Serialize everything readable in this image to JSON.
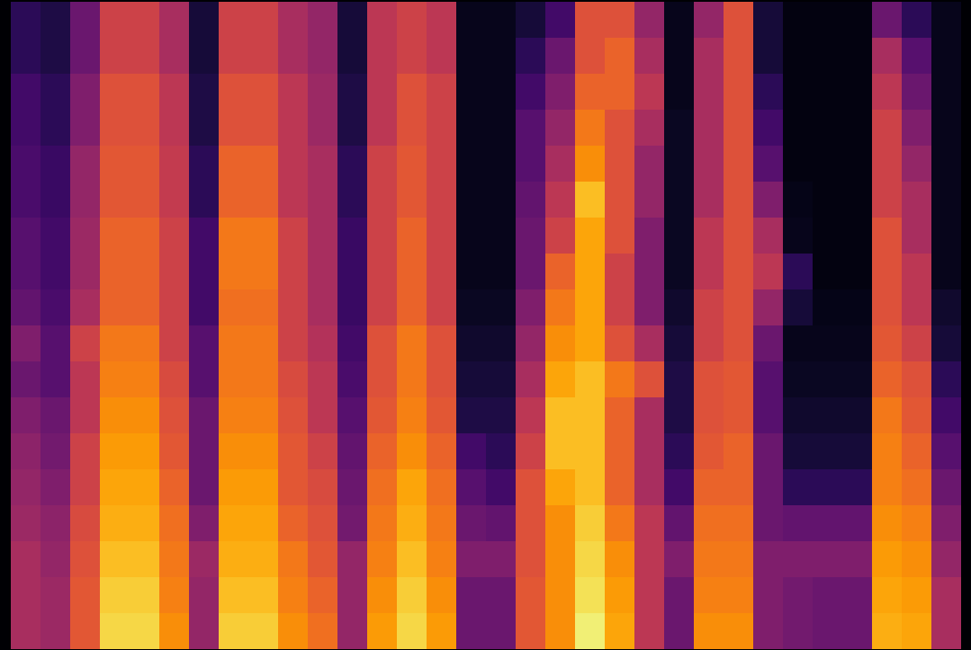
{
  "chart_data": {
    "type": "heatmap",
    "color": "inferno",
    "tick_labels": false,
    "zlim": [
      0,
      1
    ],
    "cells": [
      [
        0.15,
        0.12,
        0.3,
        0.55,
        0.55,
        0.45,
        0.1,
        0.55,
        0.55,
        0.45,
        0.4,
        0.1,
        0.5,
        0.55,
        0.5,
        0.05,
        0.05,
        0.1,
        0.2,
        0.6,
        0.6,
        0.4,
        0.05,
        0.4,
        0.6,
        0.1,
        0.03,
        0.03,
        0.03,
        0.3,
        0.15,
        0.05
      ],
      [
        0.15,
        0.12,
        0.3,
        0.55,
        0.55,
        0.45,
        0.1,
        0.55,
        0.55,
        0.45,
        0.4,
        0.1,
        0.5,
        0.55,
        0.5,
        0.05,
        0.05,
        0.15,
        0.3,
        0.6,
        0.65,
        0.45,
        0.05,
        0.45,
        0.6,
        0.1,
        0.03,
        0.03,
        0.03,
        0.45,
        0.25,
        0.05
      ],
      [
        0.2,
        0.15,
        0.35,
        0.6,
        0.6,
        0.5,
        0.12,
        0.6,
        0.6,
        0.5,
        0.42,
        0.12,
        0.5,
        0.6,
        0.55,
        0.05,
        0.05,
        0.2,
        0.35,
        0.65,
        0.65,
        0.5,
        0.05,
        0.45,
        0.6,
        0.15,
        0.03,
        0.03,
        0.03,
        0.5,
        0.3,
        0.05
      ],
      [
        0.2,
        0.15,
        0.35,
        0.6,
        0.6,
        0.5,
        0.12,
        0.6,
        0.6,
        0.5,
        0.42,
        0.12,
        0.5,
        0.6,
        0.55,
        0.05,
        0.05,
        0.25,
        0.4,
        0.7,
        0.6,
        0.45,
        0.06,
        0.45,
        0.6,
        0.2,
        0.03,
        0.03,
        0.03,
        0.55,
        0.35,
        0.05
      ],
      [
        0.22,
        0.18,
        0.4,
        0.62,
        0.62,
        0.52,
        0.15,
        0.65,
        0.65,
        0.5,
        0.45,
        0.15,
        0.55,
        0.62,
        0.55,
        0.05,
        0.05,
        0.25,
        0.45,
        0.75,
        0.6,
        0.4,
        0.06,
        0.45,
        0.6,
        0.25,
        0.03,
        0.03,
        0.03,
        0.55,
        0.4,
        0.05
      ],
      [
        0.22,
        0.18,
        0.4,
        0.62,
        0.62,
        0.52,
        0.15,
        0.65,
        0.65,
        0.5,
        0.45,
        0.15,
        0.55,
        0.62,
        0.55,
        0.05,
        0.05,
        0.28,
        0.5,
        0.85,
        0.6,
        0.4,
        0.06,
        0.45,
        0.6,
        0.35,
        0.04,
        0.03,
        0.03,
        0.55,
        0.45,
        0.05
      ],
      [
        0.25,
        0.2,
        0.42,
        0.65,
        0.65,
        0.55,
        0.2,
        0.7,
        0.7,
        0.55,
        0.45,
        0.18,
        0.55,
        0.65,
        0.55,
        0.05,
        0.05,
        0.3,
        0.55,
        0.8,
        0.6,
        0.35,
        0.06,
        0.5,
        0.6,
        0.45,
        0.05,
        0.03,
        0.03,
        0.6,
        0.45,
        0.05
      ],
      [
        0.25,
        0.2,
        0.42,
        0.65,
        0.65,
        0.55,
        0.2,
        0.7,
        0.7,
        0.55,
        0.45,
        0.18,
        0.55,
        0.65,
        0.55,
        0.05,
        0.05,
        0.3,
        0.65,
        0.8,
        0.55,
        0.35,
        0.06,
        0.5,
        0.6,
        0.5,
        0.15,
        0.03,
        0.03,
        0.6,
        0.5,
        0.05
      ],
      [
        0.28,
        0.22,
        0.45,
        0.65,
        0.65,
        0.55,
        0.2,
        0.68,
        0.68,
        0.55,
        0.45,
        0.18,
        0.55,
        0.65,
        0.55,
        0.06,
        0.06,
        0.35,
        0.7,
        0.8,
        0.55,
        0.35,
        0.08,
        0.55,
        0.6,
        0.4,
        0.1,
        0.04,
        0.04,
        0.6,
        0.5,
        0.08
      ],
      [
        0.35,
        0.25,
        0.55,
        0.7,
        0.7,
        0.55,
        0.25,
        0.7,
        0.7,
        0.55,
        0.48,
        0.2,
        0.6,
        0.7,
        0.6,
        0.08,
        0.08,
        0.4,
        0.75,
        0.8,
        0.6,
        0.45,
        0.1,
        0.55,
        0.6,
        0.3,
        0.05,
        0.05,
        0.05,
        0.62,
        0.55,
        0.1
      ],
      [
        0.3,
        0.25,
        0.5,
        0.72,
        0.72,
        0.58,
        0.25,
        0.7,
        0.7,
        0.58,
        0.5,
        0.22,
        0.6,
        0.7,
        0.6,
        0.1,
        0.1,
        0.45,
        0.8,
        0.85,
        0.7,
        0.6,
        0.12,
        0.6,
        0.62,
        0.25,
        0.06,
        0.06,
        0.06,
        0.65,
        0.6,
        0.15
      ],
      [
        0.35,
        0.3,
        0.5,
        0.75,
        0.75,
        0.6,
        0.3,
        0.72,
        0.72,
        0.6,
        0.5,
        0.25,
        0.62,
        0.72,
        0.62,
        0.12,
        0.12,
        0.5,
        0.85,
        0.85,
        0.65,
        0.45,
        0.12,
        0.6,
        0.62,
        0.25,
        0.08,
        0.08,
        0.08,
        0.7,
        0.62,
        0.2
      ],
      [
        0.38,
        0.32,
        0.55,
        0.78,
        0.78,
        0.62,
        0.3,
        0.75,
        0.75,
        0.62,
        0.55,
        0.28,
        0.65,
        0.75,
        0.65,
        0.2,
        0.15,
        0.55,
        0.85,
        0.85,
        0.65,
        0.45,
        0.15,
        0.62,
        0.65,
        0.3,
        0.1,
        0.1,
        0.1,
        0.72,
        0.65,
        0.25
      ],
      [
        0.4,
        0.35,
        0.55,
        0.8,
        0.8,
        0.65,
        0.3,
        0.78,
        0.78,
        0.62,
        0.58,
        0.3,
        0.68,
        0.8,
        0.68,
        0.25,
        0.2,
        0.6,
        0.8,
        0.85,
        0.65,
        0.45,
        0.2,
        0.65,
        0.65,
        0.3,
        0.15,
        0.15,
        0.15,
        0.72,
        0.68,
        0.3
      ],
      [
        0.42,
        0.38,
        0.58,
        0.82,
        0.82,
        0.68,
        0.35,
        0.8,
        0.8,
        0.65,
        0.6,
        0.32,
        0.7,
        0.82,
        0.7,
        0.3,
        0.28,
        0.6,
        0.75,
        0.88,
        0.7,
        0.5,
        0.28,
        0.68,
        0.68,
        0.3,
        0.28,
        0.28,
        0.28,
        0.75,
        0.72,
        0.35
      ],
      [
        0.45,
        0.4,
        0.6,
        0.85,
        0.85,
        0.7,
        0.42,
        0.82,
        0.82,
        0.7,
        0.62,
        0.4,
        0.72,
        0.85,
        0.72,
        0.35,
        0.35,
        0.6,
        0.75,
        0.9,
        0.75,
        0.5,
        0.35,
        0.7,
        0.7,
        0.35,
        0.35,
        0.35,
        0.35,
        0.78,
        0.75,
        0.4
      ],
      [
        0.45,
        0.42,
        0.62,
        0.88,
        0.88,
        0.72,
        0.4,
        0.85,
        0.85,
        0.72,
        0.65,
        0.4,
        0.75,
        0.88,
        0.75,
        0.3,
        0.3,
        0.62,
        0.75,
        0.92,
        0.78,
        0.5,
        0.3,
        0.72,
        0.72,
        0.35,
        0.32,
        0.3,
        0.3,
        0.8,
        0.78,
        0.45
      ],
      [
        0.45,
        0.42,
        0.62,
        0.9,
        0.9,
        0.75,
        0.4,
        0.88,
        0.88,
        0.75,
        0.68,
        0.4,
        0.78,
        0.9,
        0.78,
        0.3,
        0.3,
        0.62,
        0.75,
        0.95,
        0.8,
        0.5,
        0.3,
        0.75,
        0.75,
        0.35,
        0.32,
        0.3,
        0.3,
        0.82,
        0.8,
        0.45
      ]
    ]
  }
}
